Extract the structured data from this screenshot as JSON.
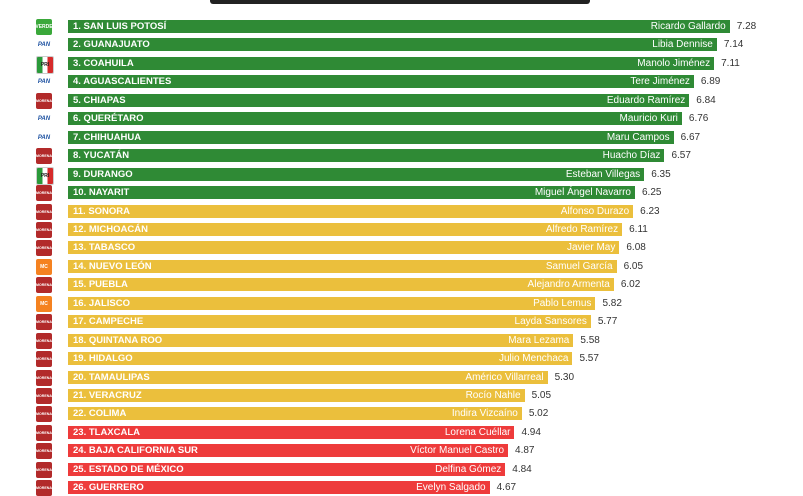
{
  "chart_data": {
    "type": "bar",
    "orientation": "horizontal",
    "xlim": [
      0,
      7.5
    ],
    "colors": {
      "green": "#2f8a35",
      "yellow": "#ebbf3c",
      "red": "#ee3b3b"
    },
    "party_colors": {
      "VERDE": "#3aa83a",
      "PAN": "#ffffff",
      "PRI": "#ffffff",
      "MORENA": "#b22a2a",
      "MC": "#f58220"
    },
    "rows": [
      {
        "state": "1. SAN LUIS POTOSÍ",
        "governor": "Ricardo Gallardo",
        "value": 7.28,
        "value_label": "7.28",
        "tier": "green",
        "party": "VERDE"
      },
      {
        "state": "2. GUANAJUATO",
        "governor": "Libia Dennise",
        "value": 7.14,
        "value_label": "7.14",
        "tier": "green",
        "party": "PAN"
      },
      {
        "state": "3. COAHUILA",
        "governor": "Manolo Jiménez",
        "value": 7.11,
        "value_label": "7.11",
        "tier": "green",
        "party": "PRI"
      },
      {
        "state": "4. AGUASCALIENTES",
        "governor": "Tere Jiménez",
        "value": 6.89,
        "value_label": "6.89",
        "tier": "green",
        "party": "PAN"
      },
      {
        "state": "5. CHIAPAS",
        "governor": "Eduardo Ramírez",
        "value": 6.84,
        "value_label": "6.84",
        "tier": "green",
        "party": "MORENA"
      },
      {
        "state": "6. QUERÉTARO",
        "governor": "Mauricio Kuri",
        "value": 6.76,
        "value_label": "6.76",
        "tier": "green",
        "party": "PAN"
      },
      {
        "state": "7. CHIHUAHUA",
        "governor": "Maru Campos",
        "value": 6.67,
        "value_label": "6.67",
        "tier": "green",
        "party": "PAN"
      },
      {
        "state": "8. YUCATÁN",
        "governor": "Huacho Díaz",
        "value": 6.57,
        "value_label": "6.57",
        "tier": "green",
        "party": "MORENA"
      },
      {
        "state": "9. DURANGO",
        "governor": "Esteban Villegas",
        "value": 6.35,
        "value_label": "6.35",
        "tier": "green",
        "party": "PRI"
      },
      {
        "state": "10. NAYARIT",
        "governor": "Miguel Ángel Navarro",
        "value": 6.25,
        "value_label": "6.25",
        "tier": "green",
        "party": "MORENA"
      },
      {
        "state": "11. SONORA",
        "governor": "Alfonso Durazo",
        "value": 6.23,
        "value_label": "6.23",
        "tier": "yellow",
        "party": "MORENA"
      },
      {
        "state": "12. MICHOACÁN",
        "governor": "Alfredo Ramírez",
        "value": 6.11,
        "value_label": "6.11",
        "tier": "yellow",
        "party": "MORENA"
      },
      {
        "state": "13. TABASCO",
        "governor": "Javier May",
        "value": 6.08,
        "value_label": "6.08",
        "tier": "yellow",
        "party": "MORENA"
      },
      {
        "state": "14. NUEVO LEÓN",
        "governor": "Samuel García",
        "value": 6.05,
        "value_label": "6.05",
        "tier": "yellow",
        "party": "MC"
      },
      {
        "state": "15. PUEBLA",
        "governor": "Alejandro Armenta",
        "value": 6.02,
        "value_label": "6.02",
        "tier": "yellow",
        "party": "MORENA"
      },
      {
        "state": "16. JALISCO",
        "governor": "Pablo Lemus",
        "value": 5.82,
        "value_label": "5.82",
        "tier": "yellow",
        "party": "MC"
      },
      {
        "state": "17. CAMPECHE",
        "governor": "Layda Sansores",
        "value": 5.77,
        "value_label": "5.77",
        "tier": "yellow",
        "party": "MORENA"
      },
      {
        "state": "18. QUINTANA ROO",
        "governor": "Mara Lezama",
        "value": 5.58,
        "value_label": "5.58",
        "tier": "yellow",
        "party": "MORENA"
      },
      {
        "state": "19. HIDALGO",
        "governor": "Julio Menchaca",
        "value": 5.57,
        "value_label": "5.57",
        "tier": "yellow",
        "party": "MORENA"
      },
      {
        "state": "20. TAMAULIPAS",
        "governor": "Américo Villarreal",
        "value": 5.3,
        "value_label": "5.30",
        "tier": "yellow",
        "party": "MORENA"
      },
      {
        "state": "21. VERACRUZ",
        "governor": "Rocío Nahle",
        "value": 5.05,
        "value_label": "5.05",
        "tier": "yellow",
        "party": "MORENA"
      },
      {
        "state": "22. COLIMA",
        "governor": "Indira Vizcaíno",
        "value": 5.02,
        "value_label": "5.02",
        "tier": "yellow",
        "party": "MORENA"
      },
      {
        "state": "23. TLAXCALA",
        "governor": "Lorena Cuéllar",
        "value": 4.94,
        "value_label": "4.94",
        "tier": "red",
        "party": "MORENA"
      },
      {
        "state": "24. BAJA CALIFORNIA SUR",
        "governor": "Víctor Manuel Castro",
        "value": 4.87,
        "value_label": "4.87",
        "tier": "red",
        "party": "MORENA"
      },
      {
        "state": "25. ESTADO DE MÉXICO",
        "governor": "Delfina Gómez",
        "value": 4.84,
        "value_label": "4.84",
        "tier": "red",
        "party": "MORENA"
      },
      {
        "state": "26. GUERRERO",
        "governor": "Evelyn Salgado",
        "value": 4.67,
        "value_label": "4.67",
        "tier": "red",
        "party": "MORENA"
      }
    ]
  }
}
